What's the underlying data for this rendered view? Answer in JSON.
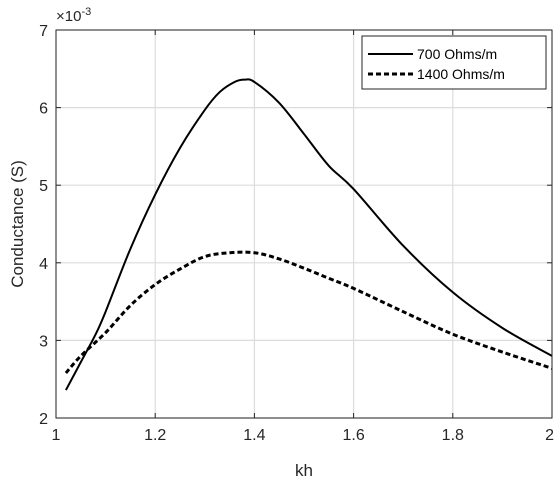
{
  "chart_data": {
    "type": "line",
    "title": "",
    "xlabel": "kh",
    "ylabel": "Conductance (S)",
    "exponent_label": {
      "base": "×10",
      "power": "-3"
    },
    "xlim": [
      1,
      2
    ],
    "ylim": [
      2,
      7
    ],
    "xticks": [
      1,
      1.2,
      1.4,
      1.6,
      1.8,
      2
    ],
    "yticks": [
      2,
      3,
      4,
      5,
      6,
      7
    ],
    "x_tick_labels": [
      "1",
      "1.2",
      "1.4",
      "1.6",
      "1.8",
      "2"
    ],
    "y_tick_labels": [
      "2",
      "3",
      "4",
      "5",
      "6",
      "7"
    ],
    "grid": true,
    "legend_position": "top-right",
    "series": [
      {
        "name": "700 Ohms/m",
        "style": "solid",
        "color": "#000000",
        "x": [
          1.02,
          1.05,
          1.08,
          1.1,
          1.15,
          1.2,
          1.25,
          1.3,
          1.33,
          1.36,
          1.38,
          1.4,
          1.45,
          1.5,
          1.55,
          1.6,
          1.7,
          1.8,
          1.9,
          2.0
        ],
        "y": [
          2.36,
          2.72,
          3.08,
          3.37,
          4.18,
          4.88,
          5.48,
          5.97,
          6.2,
          6.33,
          6.36,
          6.33,
          6.06,
          5.66,
          5.25,
          4.95,
          4.22,
          3.62,
          3.16,
          2.8
        ]
      },
      {
        "name": "1400 Ohms/m",
        "style": "dashed",
        "color": "#000000",
        "x": [
          1.02,
          1.05,
          1.1,
          1.15,
          1.2,
          1.25,
          1.3,
          1.35,
          1.4,
          1.45,
          1.5,
          1.55,
          1.6,
          1.7,
          1.8,
          1.9,
          2.0
        ],
        "y": [
          2.58,
          2.8,
          3.1,
          3.45,
          3.72,
          3.92,
          4.08,
          4.13,
          4.13,
          4.05,
          3.93,
          3.8,
          3.67,
          3.37,
          3.08,
          2.85,
          2.64
        ]
      }
    ]
  }
}
